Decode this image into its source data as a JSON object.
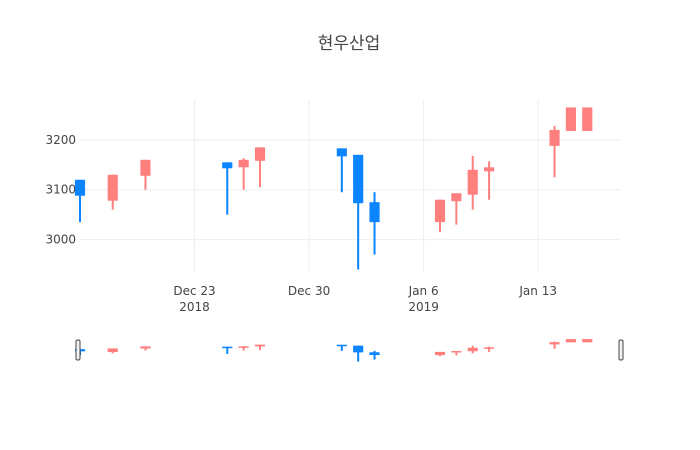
{
  "chart_data": {
    "type": "candlestick",
    "title": "현우산업",
    "colors": {
      "increasing": "#ff7f7f",
      "decreasing": "#0a84ff",
      "grid": "#eeeeee",
      "slider_border": "#444444"
    },
    "ylim": [
      2935,
      3280
    ],
    "yticks": [
      3000,
      3100,
      3200
    ],
    "xlim": [
      "2018-12-16",
      "2019-01-18"
    ],
    "xticks": [
      {
        "date": "2018-12-23",
        "label": "Dec 23",
        "sublabel": "2018"
      },
      {
        "date": "2018-12-30",
        "label": "Dec 30",
        "sublabel": ""
      },
      {
        "date": "2019-01-06",
        "label": "Jan 6",
        "sublabel": "2019"
      },
      {
        "date": "2019-01-13",
        "label": "Jan 13",
        "sublabel": ""
      }
    ],
    "candles": [
      {
        "date": "2018-12-16",
        "open": 3120,
        "high": 3120,
        "low": 3035,
        "close": 3088
      },
      {
        "date": "2018-12-18",
        "open": 3078,
        "high": 3130,
        "low": 3060,
        "close": 3130
      },
      {
        "date": "2018-12-20",
        "open": 3128,
        "high": 3160,
        "low": 3100,
        "close": 3160
      },
      {
        "date": "2018-12-25",
        "open": 3155,
        "high": 3155,
        "low": 3050,
        "close": 3143
      },
      {
        "date": "2018-12-26",
        "open": 3145,
        "high": 3163,
        "low": 3100,
        "close": 3160
      },
      {
        "date": "2018-12-27",
        "open": 3158,
        "high": 3185,
        "low": 3105,
        "close": 3185
      },
      {
        "date": "2019-01-01",
        "open": 3183,
        "high": 3183,
        "low": 3095,
        "close": 3167
      },
      {
        "date": "2019-01-02",
        "open": 3170,
        "high": 3170,
        "low": 2940,
        "close": 3073
      },
      {
        "date": "2019-01-03",
        "open": 3075,
        "high": 3095,
        "low": 2970,
        "close": 3035
      },
      {
        "date": "2019-01-07",
        "open": 3035,
        "high": 3080,
        "low": 3015,
        "close": 3080
      },
      {
        "date": "2019-01-08",
        "open": 3077,
        "high": 3093,
        "low": 3030,
        "close": 3093
      },
      {
        "date": "2019-01-09",
        "open": 3090,
        "high": 3168,
        "low": 3060,
        "close": 3140
      },
      {
        "date": "2019-01-10",
        "open": 3137,
        "high": 3157,
        "low": 3080,
        "close": 3145
      },
      {
        "date": "2019-01-14",
        "open": 3188,
        "high": 3228,
        "low": 3125,
        "close": 3220
      },
      {
        "date": "2019-01-15",
        "open": 3218,
        "high": 3265,
        "low": 3218,
        "close": 3265
      },
      {
        "date": "2019-01-16",
        "open": 3218,
        "high": 3265,
        "low": 3218,
        "close": 3265
      }
    ],
    "grid": true,
    "range_slider": true
  }
}
